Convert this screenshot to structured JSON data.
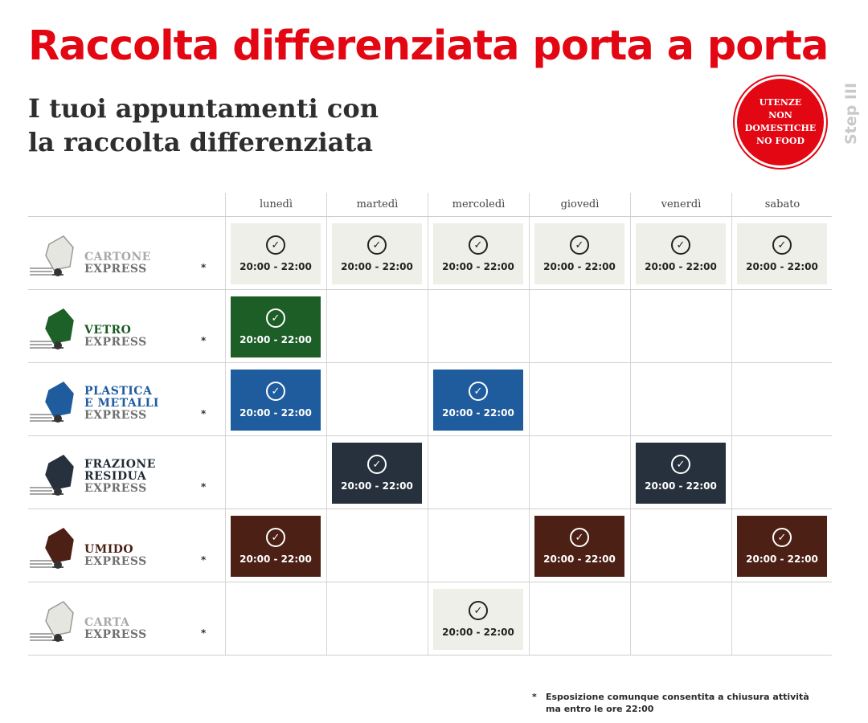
{
  "title": "Raccolta differenziata porta a porta",
  "subtitle": "I tuoi appuntamenti con\nla raccolta differenziata",
  "badge": "UTENZE\nNON\nDOMESTICHE\nNO FOOD",
  "step": "Step III",
  "days": [
    "lunedì",
    "martedì",
    "mercoledì",
    "giovedì",
    "venerdì",
    "sabato"
  ],
  "rows": [
    {
      "name": "CARTONE",
      "express": "EXPRESS",
      "asterisk": "*",
      "name_color": "#a9a9a9",
      "bin_color": "#e6e6e1",
      "slot_color": "#efefe9",
      "slot_style": "light",
      "icon": "cardboard-bin-icon",
      "slots": [
        "20:00 - 22:00",
        "20:00 - 22:00",
        "20:00 - 22:00",
        "20:00 - 22:00",
        "20:00 - 22:00",
        "20:00 - 22:00"
      ]
    },
    {
      "name": "VETRO",
      "express": "EXPRESS",
      "asterisk": "*",
      "name_color": "#1a5a23",
      "bin_color": "#1e6128",
      "slot_color": "#1d5e27",
      "slot_style": "dark",
      "icon": "glass-bin-icon",
      "slots": [
        "20:00 - 22:00",
        "",
        "",
        "",
        "",
        ""
      ]
    },
    {
      "name": "PLASTICA\nE METALLI",
      "express": "EXPRESS",
      "asterisk": "*",
      "name_color": "#1f5c9e",
      "bin_color": "#1f5c9e",
      "slot_color": "#1f5c9e",
      "slot_style": "dark",
      "icon": "plastic-bin-icon",
      "slots": [
        "20:00 - 22:00",
        "",
        "20:00 - 22:00",
        "",
        "",
        ""
      ]
    },
    {
      "name": "FRAZIONE\nRESIDUA",
      "express": "EXPRESS",
      "asterisk": "*",
      "name_color": "#1f2a36",
      "bin_color": "#27313d",
      "slot_color": "#27313d",
      "slot_style": "dark",
      "icon": "residual-bin-icon",
      "slots": [
        "",
        "20:00 - 22:00",
        "",
        "",
        "20:00 - 22:00",
        ""
      ]
    },
    {
      "name": "UMIDO",
      "express": "EXPRESS",
      "asterisk": "*",
      "name_color": "#4a1f14",
      "bin_color": "#4d2016",
      "slot_color": "#4d2016",
      "slot_style": "dark",
      "icon": "organic-bin-icon",
      "slots": [
        "20:00 - 22:00",
        "",
        "",
        "20:00 - 22:00",
        "",
        "20:00 - 22:00"
      ]
    },
    {
      "name": "CARTA",
      "express": "EXPRESS",
      "asterisk": "*",
      "name_color": "#a9a9a9",
      "bin_color": "#e6e6e1",
      "slot_color": "#efefe9",
      "slot_style": "light",
      "icon": "paper-bin-icon",
      "slots": [
        "",
        "",
        "20:00 - 22:00",
        "",
        "",
        ""
      ]
    }
  ],
  "check_glyph": "✓",
  "footnote_mark": "*",
  "footnote": "Esposizione comunque consentita a chiusura attività\nma entro le ore 22:00"
}
